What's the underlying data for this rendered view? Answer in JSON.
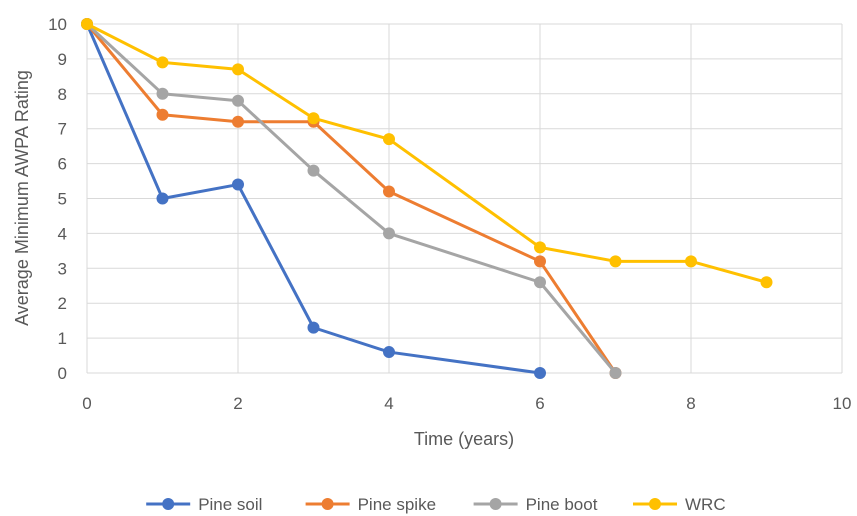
{
  "chart_data": {
    "type": "line",
    "title": "",
    "xlabel": "Time (years)",
    "ylabel": "Average Minimum AWPA Rating",
    "xlim": [
      0,
      10
    ],
    "ylim": [
      0,
      10
    ],
    "xticks": [
      0,
      2,
      4,
      6,
      8,
      10
    ],
    "yticks": [
      0,
      1,
      2,
      3,
      4,
      5,
      6,
      7,
      8,
      9,
      10
    ],
    "grid": true,
    "legend_position": "bottom",
    "series": [
      {
        "name": "Pine soil",
        "color": "#4472C4",
        "x": [
          0,
          1,
          2,
          3,
          4,
          6
        ],
        "y": [
          10,
          5.0,
          5.4,
          1.3,
          0.6,
          0.0
        ]
      },
      {
        "name": "Pine spike",
        "color": "#ED7D31",
        "x": [
          0,
          1,
          2,
          3,
          4,
          6,
          7
        ],
        "y": [
          10,
          7.4,
          7.2,
          7.2,
          5.2,
          3.2,
          0.0
        ]
      },
      {
        "name": "Pine boot",
        "color": "#A5A5A5",
        "x": [
          0,
          1,
          2,
          3,
          4,
          6,
          7
        ],
        "y": [
          10,
          8.0,
          7.8,
          5.8,
          4.0,
          2.6,
          0.0
        ]
      },
      {
        "name": "WRC",
        "color": "#FFC000",
        "x": [
          0,
          1,
          2,
          3,
          4,
          6,
          7,
          8,
          9
        ],
        "y": [
          10,
          8.9,
          8.7,
          7.3,
          6.7,
          3.6,
          3.2,
          3.2,
          2.6
        ]
      }
    ]
  }
}
